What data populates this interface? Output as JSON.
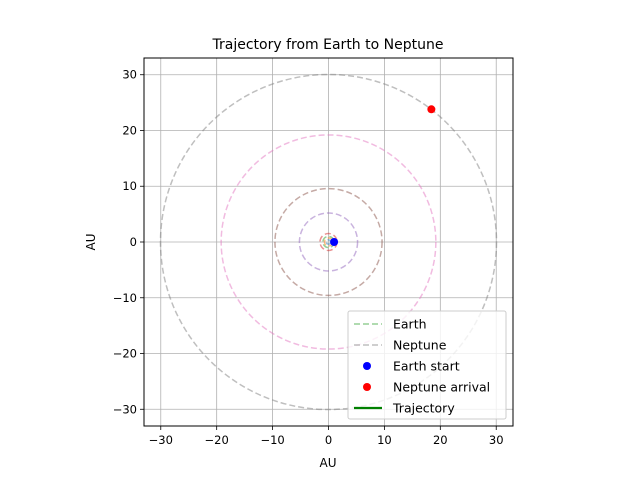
{
  "chart_data": {
    "type": "line",
    "title": "Trajectory from Earth to Neptune",
    "xlabel": "AU",
    "ylabel": "AU",
    "xlim": [
      -33,
      33
    ],
    "ylim": [
      -33,
      33
    ],
    "xticks": [
      -30,
      -20,
      -10,
      0,
      10,
      20,
      30
    ],
    "yticks": [
      -30,
      -20,
      -10,
      0,
      10,
      20,
      30
    ],
    "grid": true,
    "legend_position": "lower-right",
    "orbits": [
      {
        "radius": 0.39,
        "color": "#1f77b4",
        "style": "dashed"
      },
      {
        "radius": 0.72,
        "color": "#ff7f0e",
        "style": "dashed"
      },
      {
        "name": "Earth",
        "radius": 1.0,
        "color": "#2ca02c",
        "style": "dashed"
      },
      {
        "radius": 1.52,
        "color": "#d62728",
        "style": "dashed"
      },
      {
        "radius": 5.2,
        "color": "#9467bd",
        "style": "dashed"
      },
      {
        "radius": 9.58,
        "color": "#8c564b",
        "style": "dashed"
      },
      {
        "radius": 19.2,
        "color": "#e377c2",
        "style": "dashed"
      },
      {
        "name": "Neptune",
        "radius": 30.05,
        "color": "#7f7f7f",
        "style": "dashed"
      }
    ],
    "points": [
      {
        "name": "Earth start",
        "x": 1.0,
        "y": 0.0,
        "color": "#0000ff"
      },
      {
        "name": "Neptune arrival",
        "x": 18.4,
        "y": 23.8,
        "color": "#ff0000"
      }
    ],
    "trajectory": {
      "name": "Trajectory",
      "color": "#008000",
      "x": [
        1.0,
        1.0
      ],
      "y": [
        0.0,
        0.0
      ]
    },
    "legend": [
      {
        "label": "Earth",
        "kind": "dashed",
        "color": "#2ca02c"
      },
      {
        "label": "Neptune",
        "kind": "dashed",
        "color": "#7f7f7f"
      },
      {
        "label": "Earth start",
        "kind": "marker",
        "color": "#0000ff"
      },
      {
        "label": "Neptune arrival",
        "kind": "marker",
        "color": "#ff0000"
      },
      {
        "label": "Trajectory",
        "kind": "solid",
        "color": "#008000"
      }
    ]
  }
}
